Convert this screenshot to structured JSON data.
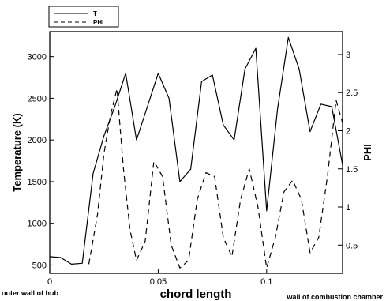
{
  "chart_data": {
    "type": "line",
    "xlabel": "chord length",
    "ylabel": "Temperature (K)",
    "y2label": "PHI",
    "xlim": [
      0,
      0.135
    ],
    "ylim": [
      400,
      3300
    ],
    "y2lim": [
      0.13,
      3.3
    ],
    "xticks": [
      "0",
      "0.05",
      "0.1"
    ],
    "xtick_values": [
      0,
      0.05,
      0.1
    ],
    "yticks": [
      "500",
      "1000",
      "1500",
      "2000",
      "2500",
      "3000"
    ],
    "ytick_values": [
      500,
      1000,
      1500,
      2000,
      2500,
      3000
    ],
    "y2ticks": [
      "0.5",
      "1",
      "1.5",
      "2",
      "2.5",
      "3"
    ],
    "y2tick_values": [
      0.5,
      1,
      1.5,
      2,
      2.5,
      3
    ],
    "annotations": {
      "left": "outer wall of hub",
      "right": "wall of combustion chamber"
    },
    "legend": {
      "position": "top-left",
      "entries": [
        "T",
        "PHI"
      ]
    },
    "grid": false,
    "series": [
      {
        "name": "T",
        "axis": "left",
        "style": "solid",
        "x": [
          0,
          0.005,
          0.01,
          0.015,
          0.02,
          0.025,
          0.03,
          0.035,
          0.04,
          0.045,
          0.05,
          0.055,
          0.06,
          0.065,
          0.07,
          0.075,
          0.08,
          0.085,
          0.09,
          0.095,
          0.1,
          0.105,
          0.11,
          0.115,
          0.12,
          0.125,
          0.13,
          0.135
        ],
        "y": [
          600,
          590,
          510,
          520,
          1600,
          2050,
          2400,
          2800,
          2000,
          2400,
          2800,
          2500,
          1500,
          1650,
          2700,
          2780,
          2180,
          2000,
          2850,
          3100,
          1150,
          2370,
          3230,
          2850,
          2100,
          2430,
          2400,
          1700
        ]
      },
      {
        "name": "PHI",
        "axis": "right",
        "style": "dashed",
        "x": [
          0.018,
          0.022,
          0.025,
          0.028,
          0.031,
          0.034,
          0.037,
          0.04,
          0.044,
          0.048,
          0.052,
          0.056,
          0.06,
          0.064,
          0.068,
          0.072,
          0.076,
          0.08,
          0.084,
          0.088,
          0.092,
          0.096,
          0.1,
          0.104,
          0.108,
          0.112,
          0.116,
          0.12,
          0.124,
          0.128,
          0.132,
          0.135
        ],
        "y": [
          0.25,
          0.9,
          1.7,
          2.2,
          2.55,
          1.5,
          0.7,
          0.3,
          0.55,
          1.6,
          1.4,
          0.5,
          0.2,
          0.3,
          1.1,
          1.45,
          1.4,
          0.6,
          0.35,
          1.1,
          1.5,
          1.0,
          0.2,
          0.6,
          1.2,
          1.35,
          1.1,
          0.4,
          0.6,
          1.4,
          2.4,
          2.1
        ]
      }
    ]
  }
}
